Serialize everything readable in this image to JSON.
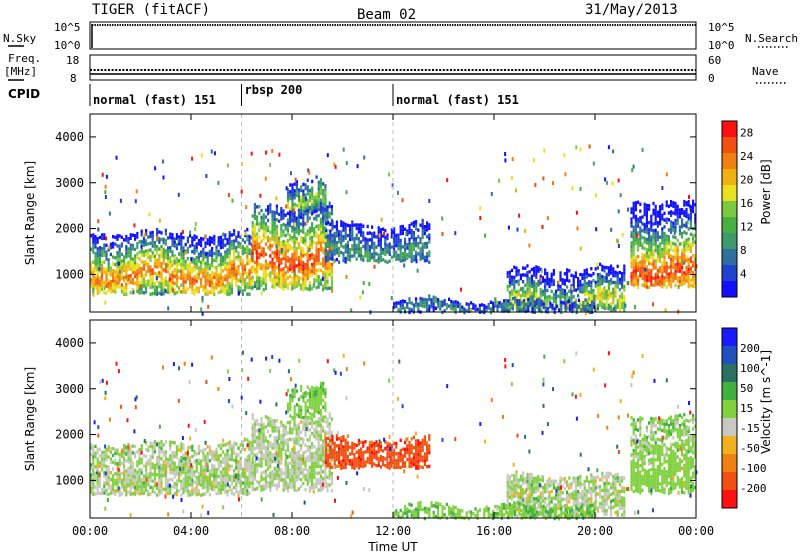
{
  "header": {
    "radar": "TIGER (fitACF)",
    "beam": "Beam 02",
    "date": "31/May/2013"
  },
  "top_panels": {
    "nsky_label": "N.Sky",
    "nsky_ticks": [
      "10^5",
      "10^0"
    ],
    "nsearch_label": "N.Search",
    "nsearch_ticks": [
      "10^5",
      "10^0"
    ],
    "freq_label_1": "Freq.",
    "freq_label_2": "[MHz]",
    "freq_ticks": [
      "18",
      "8"
    ],
    "nave_label": "Nave",
    "nave_ticks": [
      "60",
      "0"
    ],
    "cpid_label": "CPID"
  },
  "cpid_segments": [
    {
      "label": "normal (fast) 151",
      "start_hour": 0,
      "end_hour": 6
    },
    {
      "label": "rbsp 200",
      "start_hour": 6,
      "end_hour": 12
    },
    {
      "label": "normal (fast) 151",
      "start_hour": 12,
      "end_hour": 24
    }
  ],
  "x_axis": {
    "label": "Time UT",
    "ticks": [
      "00:00",
      "04:00",
      "08:00",
      "12:00",
      "16:00",
      "20:00",
      "00:00"
    ],
    "range_hours": [
      0,
      24
    ]
  },
  "chart_data": [
    {
      "type": "heatmap",
      "title": "Power",
      "ylabel": "Slant Range [km]",
      "ylim": [
        180,
        4500
      ],
      "yticks": [
        "1000",
        "2000",
        "3000",
        "4000"
      ],
      "colorbar": {
        "label": "Power [dB]",
        "range": [
          0,
          30
        ],
        "ticks": [
          "4",
          "8",
          "12",
          "16",
          "20",
          "24",
          "28"
        ],
        "colors": [
          "#1010ff",
          "#2040d0",
          "#2f6fa0",
          "#3c9a6c",
          "#48b040",
          "#7cc840",
          "#e8e020",
          "#f0b010",
          "#f08010",
          "#f05010",
          "#ff1010"
        ]
      },
      "regions": [
        {
          "t0": 0.0,
          "t1": 6.4,
          "r_low": 600,
          "r_high": 1900,
          "peak": 1000,
          "level": 18
        },
        {
          "t0": 6.4,
          "t1": 9.6,
          "r_low": 700,
          "r_high": 2500,
          "peak": 1400,
          "level": 20
        },
        {
          "t0": 7.8,
          "t1": 9.3,
          "r_low": 2400,
          "r_high": 3100,
          "peak": 2700,
          "level": 12
        },
        {
          "t0": 9.3,
          "t1": 13.4,
          "r_low": 1300,
          "r_high": 2100,
          "peak": 1500,
          "level": 8
        },
        {
          "t0": 16.5,
          "t1": 21.2,
          "r_low": 250,
          "r_high": 1150,
          "peak": 400,
          "level": 14
        },
        {
          "t0": 21.4,
          "t1": 24.0,
          "r_low": 750,
          "r_high": 2600,
          "peak": 1100,
          "level": 20
        },
        {
          "t0": 12.0,
          "t1": 20.0,
          "r_low": 200,
          "r_high": 450,
          "peak": 300,
          "level": 7
        }
      ]
    },
    {
      "type": "heatmap",
      "title": "Velocity",
      "ylabel": "Slant Range [km]",
      "ylim": [
        180,
        4500
      ],
      "yticks": [
        "1000",
        "2000",
        "3000",
        "4000"
      ],
      "colorbar": {
        "label": "Velocity [m s^-1]",
        "range": [
          -250,
          250
        ],
        "ticks": [
          "200",
          "100",
          "50",
          "15",
          "-15",
          "-50",
          "-100",
          "-200"
        ],
        "colors": [
          "#1a1aff",
          "#2050c0",
          "#2a7060",
          "#40b040",
          "#80d040",
          "#c8c8c0",
          "#f0b020",
          "#f08010",
          "#f05010",
          "#ff1010"
        ]
      },
      "regions": [
        {
          "t0": 0.0,
          "t1": 6.4,
          "r_low": 700,
          "r_high": 1800,
          "peak": 1100,
          "level": 0
        },
        {
          "t0": 6.4,
          "t1": 9.6,
          "r_low": 800,
          "r_high": 2400,
          "peak": 1400,
          "level": -5
        },
        {
          "t0": 7.8,
          "t1": 9.3,
          "r_low": 2400,
          "r_high": 3100,
          "peak": 2700,
          "level": 30
        },
        {
          "t0": 9.3,
          "t1": 13.4,
          "r_low": 1300,
          "r_high": 1900,
          "peak": 1500,
          "level": -180
        },
        {
          "t0": 16.5,
          "t1": 21.2,
          "r_low": 250,
          "r_high": 1100,
          "peak": 700,
          "level": 0
        },
        {
          "t0": 21.4,
          "t1": 24.0,
          "r_low": 750,
          "r_high": 2400,
          "peak": 1200,
          "level": 25
        },
        {
          "t0": 12.0,
          "t1": 20.0,
          "r_low": 200,
          "r_high": 450,
          "peak": 300,
          "level": 40
        }
      ]
    }
  ]
}
